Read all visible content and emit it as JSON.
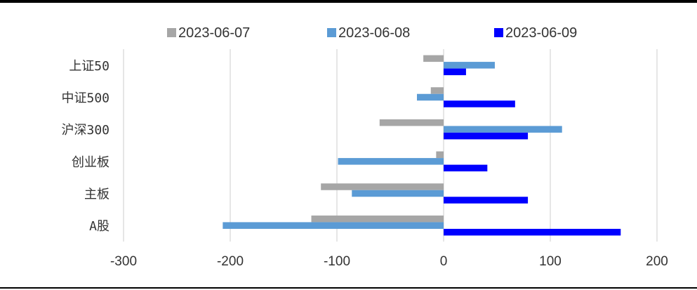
{
  "chart_data": {
    "type": "bar",
    "orientation": "horizontal",
    "categories": [
      "上证50",
      "中证500",
      "沪深300",
      "创业板",
      "主板",
      "A股"
    ],
    "series": [
      {
        "name": "2023-06-07",
        "color": "#a6a6a6",
        "values": [
          -19,
          -12,
          -60,
          -7,
          -115,
          -124
        ]
      },
      {
        "name": "2023-06-08",
        "color": "#5b9bd5",
        "values": [
          48,
          -25,
          111,
          -99,
          -86,
          -207
        ]
      },
      {
        "name": "2023-06-09",
        "color": "#0000ff",
        "values": [
          21,
          67,
          79,
          41,
          79,
          166
        ]
      }
    ],
    "xlim": [
      -300,
      200
    ],
    "xticks": [
      -300,
      -200,
      -100,
      0,
      100,
      200
    ],
    "xtick_labels": [
      "-300",
      "-200",
      "-100",
      "0",
      "100",
      "200"
    ],
    "grid": true,
    "legend_position": "top"
  }
}
